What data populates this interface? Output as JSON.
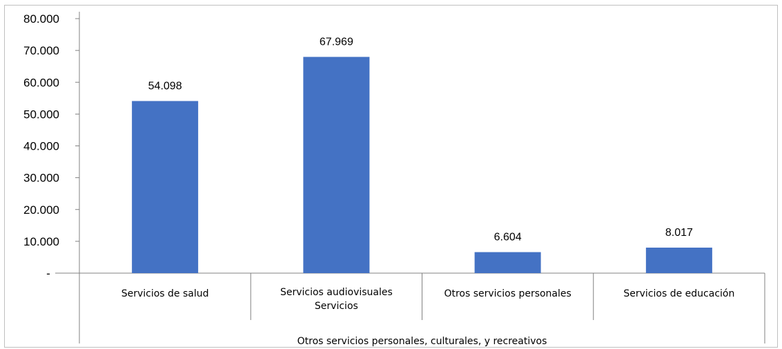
{
  "chart_data": {
    "type": "bar",
    "categories": [
      [
        "Servicios de salud"
      ],
      [
        "Servicios audiovisuales",
        "Servicios"
      ],
      [
        "Otros servicios personales"
      ],
      [
        "Servicios de educación"
      ]
    ],
    "values": [
      54098,
      67969,
      6604,
      8017
    ],
    "data_labels": [
      "54.098",
      "67.969",
      "6.604",
      "8.017"
    ],
    "group_label": "Otros servicios personales, culturales, y recreativos",
    "ylim": [
      0,
      80000
    ],
    "yticks": [
      {
        "value": 0,
        "label": "-"
      },
      {
        "value": 10000,
        "label": "10.000"
      },
      {
        "value": 20000,
        "label": "20.000"
      },
      {
        "value": 30000,
        "label": "30.000"
      },
      {
        "value": 40000,
        "label": "40.000"
      },
      {
        "value": 50000,
        "label": "50.000"
      },
      {
        "value": 60000,
        "label": "60.000"
      },
      {
        "value": 70000,
        "label": "70.000"
      },
      {
        "value": 80000,
        "label": "80.000"
      }
    ],
    "grid": false,
    "bar_color": "#4472c4",
    "axis_color": "#808080"
  }
}
